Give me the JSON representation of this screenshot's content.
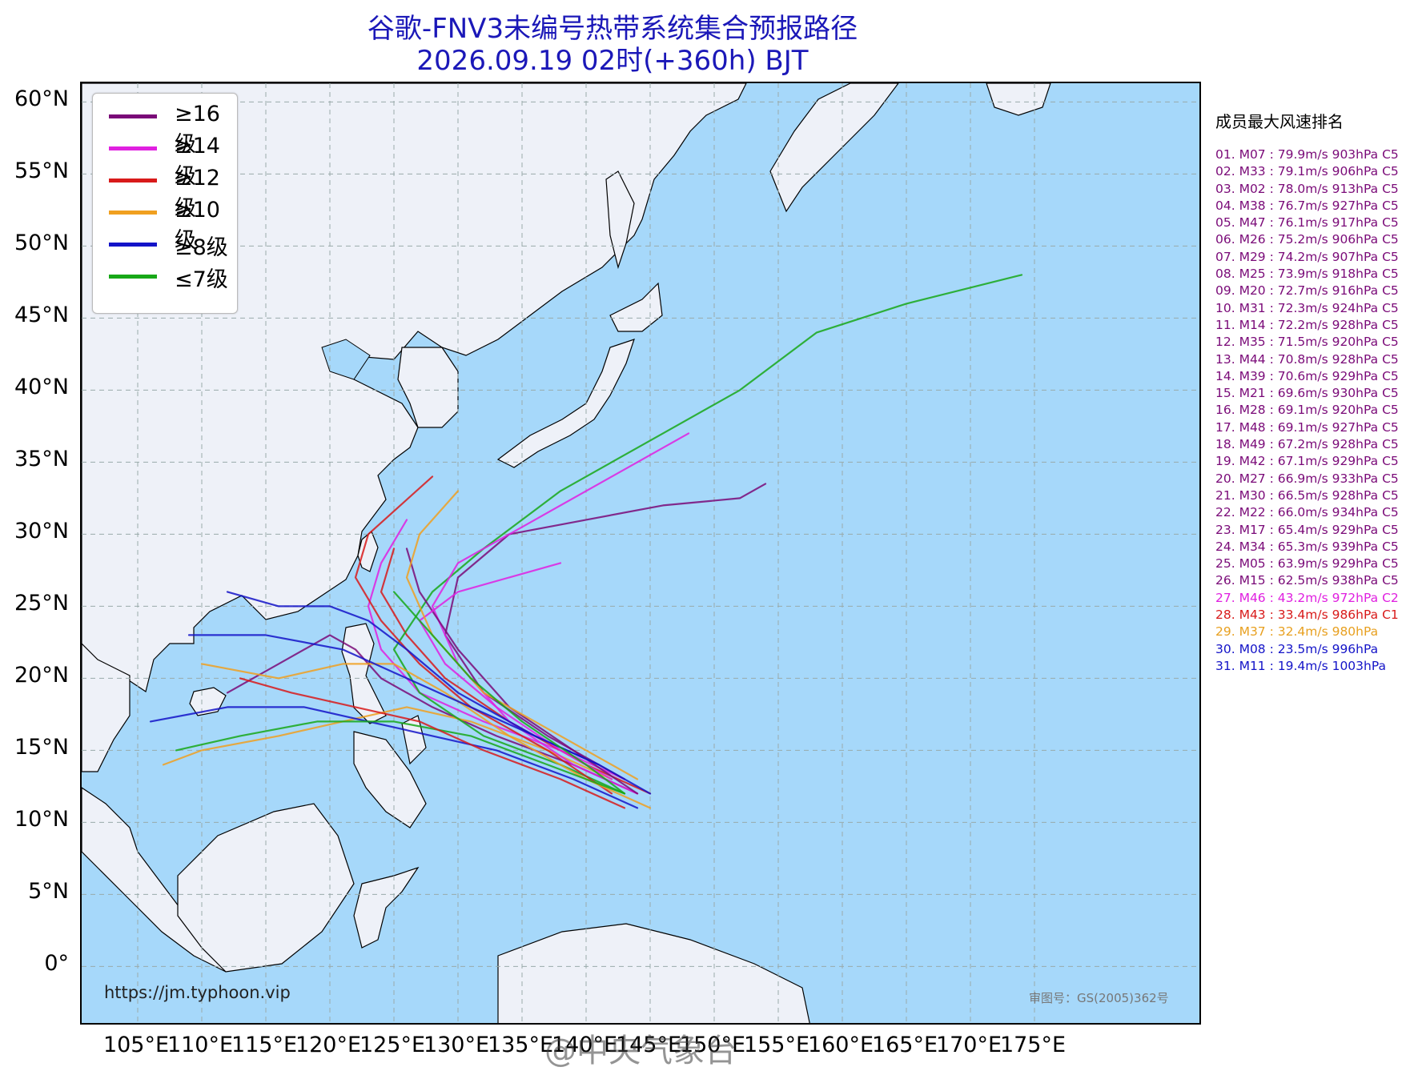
{
  "title_line1": "谷歌-FNV3未编号热带系统集合预报路径",
  "title_line2": "2026.09.19 02时(+360h) BJT",
  "lat_labels": [
    "60°N",
    "55°N",
    "50°N",
    "45°N",
    "40°N",
    "35°N",
    "30°N",
    "25°N",
    "20°N",
    "15°N",
    "10°N",
    "5°N",
    "0°"
  ],
  "lon_labels": [
    "105°E",
    "110°E",
    "115°E",
    "120°E",
    "125°E",
    "130°E",
    "135°E",
    "140°E",
    "145°E",
    "150°E",
    "155°E",
    "160°E",
    "165°E",
    "170°E",
    "175°E"
  ],
  "legend": [
    {
      "label": "≥16级",
      "color": "#7a0a78"
    },
    {
      "label": "≥14级",
      "color": "#e020e0"
    },
    {
      "label": "≥12级",
      "color": "#d81a1a"
    },
    {
      "label": "≥10级",
      "color": "#f0a020"
    },
    {
      "label": "≥8级",
      "color": "#1414c8"
    },
    {
      "label": "≤7级",
      "color": "#18a818"
    }
  ],
  "ranking_title": "成员最大风速排名",
  "ranking": [
    {
      "text": "01. M07 : 79.9m/s 903hPa C5",
      "color": "#7a0a78"
    },
    {
      "text": "02. M33 : 79.1m/s 906hPa C5",
      "color": "#7a0a78"
    },
    {
      "text": "03. M02 : 78.0m/s 913hPa C5",
      "color": "#7a0a78"
    },
    {
      "text": "04. M38 : 76.7m/s 927hPa C5",
      "color": "#7a0a78"
    },
    {
      "text": "05. M47 : 76.1m/s 917hPa C5",
      "color": "#7a0a78"
    },
    {
      "text": "06. M26 : 75.2m/s 906hPa C5",
      "color": "#7a0a78"
    },
    {
      "text": "07. M29 : 74.2m/s 907hPa C5",
      "color": "#7a0a78"
    },
    {
      "text": "08. M25 : 73.9m/s 918hPa C5",
      "color": "#7a0a78"
    },
    {
      "text": "09. M20 : 72.7m/s 916hPa C5",
      "color": "#7a0a78"
    },
    {
      "text": "10. M31 : 72.3m/s 924hPa C5",
      "color": "#7a0a78"
    },
    {
      "text": "11. M14 : 72.2m/s 928hPa C5",
      "color": "#7a0a78"
    },
    {
      "text": "12. M35 : 71.5m/s 920hPa C5",
      "color": "#7a0a78"
    },
    {
      "text": "13. M44 : 70.8m/s 928hPa C5",
      "color": "#7a0a78"
    },
    {
      "text": "14. M39 : 70.6m/s 929hPa C5",
      "color": "#7a0a78"
    },
    {
      "text": "15. M21 : 69.6m/s 930hPa C5",
      "color": "#7a0a78"
    },
    {
      "text": "16. M28 : 69.1m/s 920hPa C5",
      "color": "#7a0a78"
    },
    {
      "text": "17. M48 : 69.1m/s 927hPa C5",
      "color": "#7a0a78"
    },
    {
      "text": "18. M49 : 67.2m/s 928hPa C5",
      "color": "#7a0a78"
    },
    {
      "text": "19. M42 : 67.1m/s 929hPa C5",
      "color": "#7a0a78"
    },
    {
      "text": "20. M27 : 66.9m/s 933hPa C5",
      "color": "#7a0a78"
    },
    {
      "text": "21. M30 : 66.5m/s 928hPa C5",
      "color": "#7a0a78"
    },
    {
      "text": "22. M22 : 66.0m/s 934hPa C5",
      "color": "#7a0a78"
    },
    {
      "text": "23. M17 : 65.4m/s 929hPa C5",
      "color": "#7a0a78"
    },
    {
      "text": "24. M34 : 65.3m/s 939hPa C5",
      "color": "#7a0a78"
    },
    {
      "text": "25. M05 : 63.9m/s 929hPa C5",
      "color": "#7a0a78"
    },
    {
      "text": "26. M15 : 62.5m/s 938hPa C5",
      "color": "#7a0a78"
    },
    {
      "text": "27. M46 : 43.2m/s 972hPa C2",
      "color": "#e020e0"
    },
    {
      "text": "28. M43 : 33.4m/s 986hPa C1",
      "color": "#d81a1a"
    },
    {
      "text": "29. M37 : 32.4m/s 980hPa",
      "color": "#e8a020"
    },
    {
      "text": "30. M08 : 23.5m/s 996hPa",
      "color": "#1414c8"
    },
    {
      "text": "31. M11 : 19.4m/s 1003hPa",
      "color": "#1414c8"
    }
  ],
  "url_text": "https://jm.typhoon.vip",
  "approval_text": "审图号：GS(2005)362号",
  "watermark_text": "@中央气象台"
}
